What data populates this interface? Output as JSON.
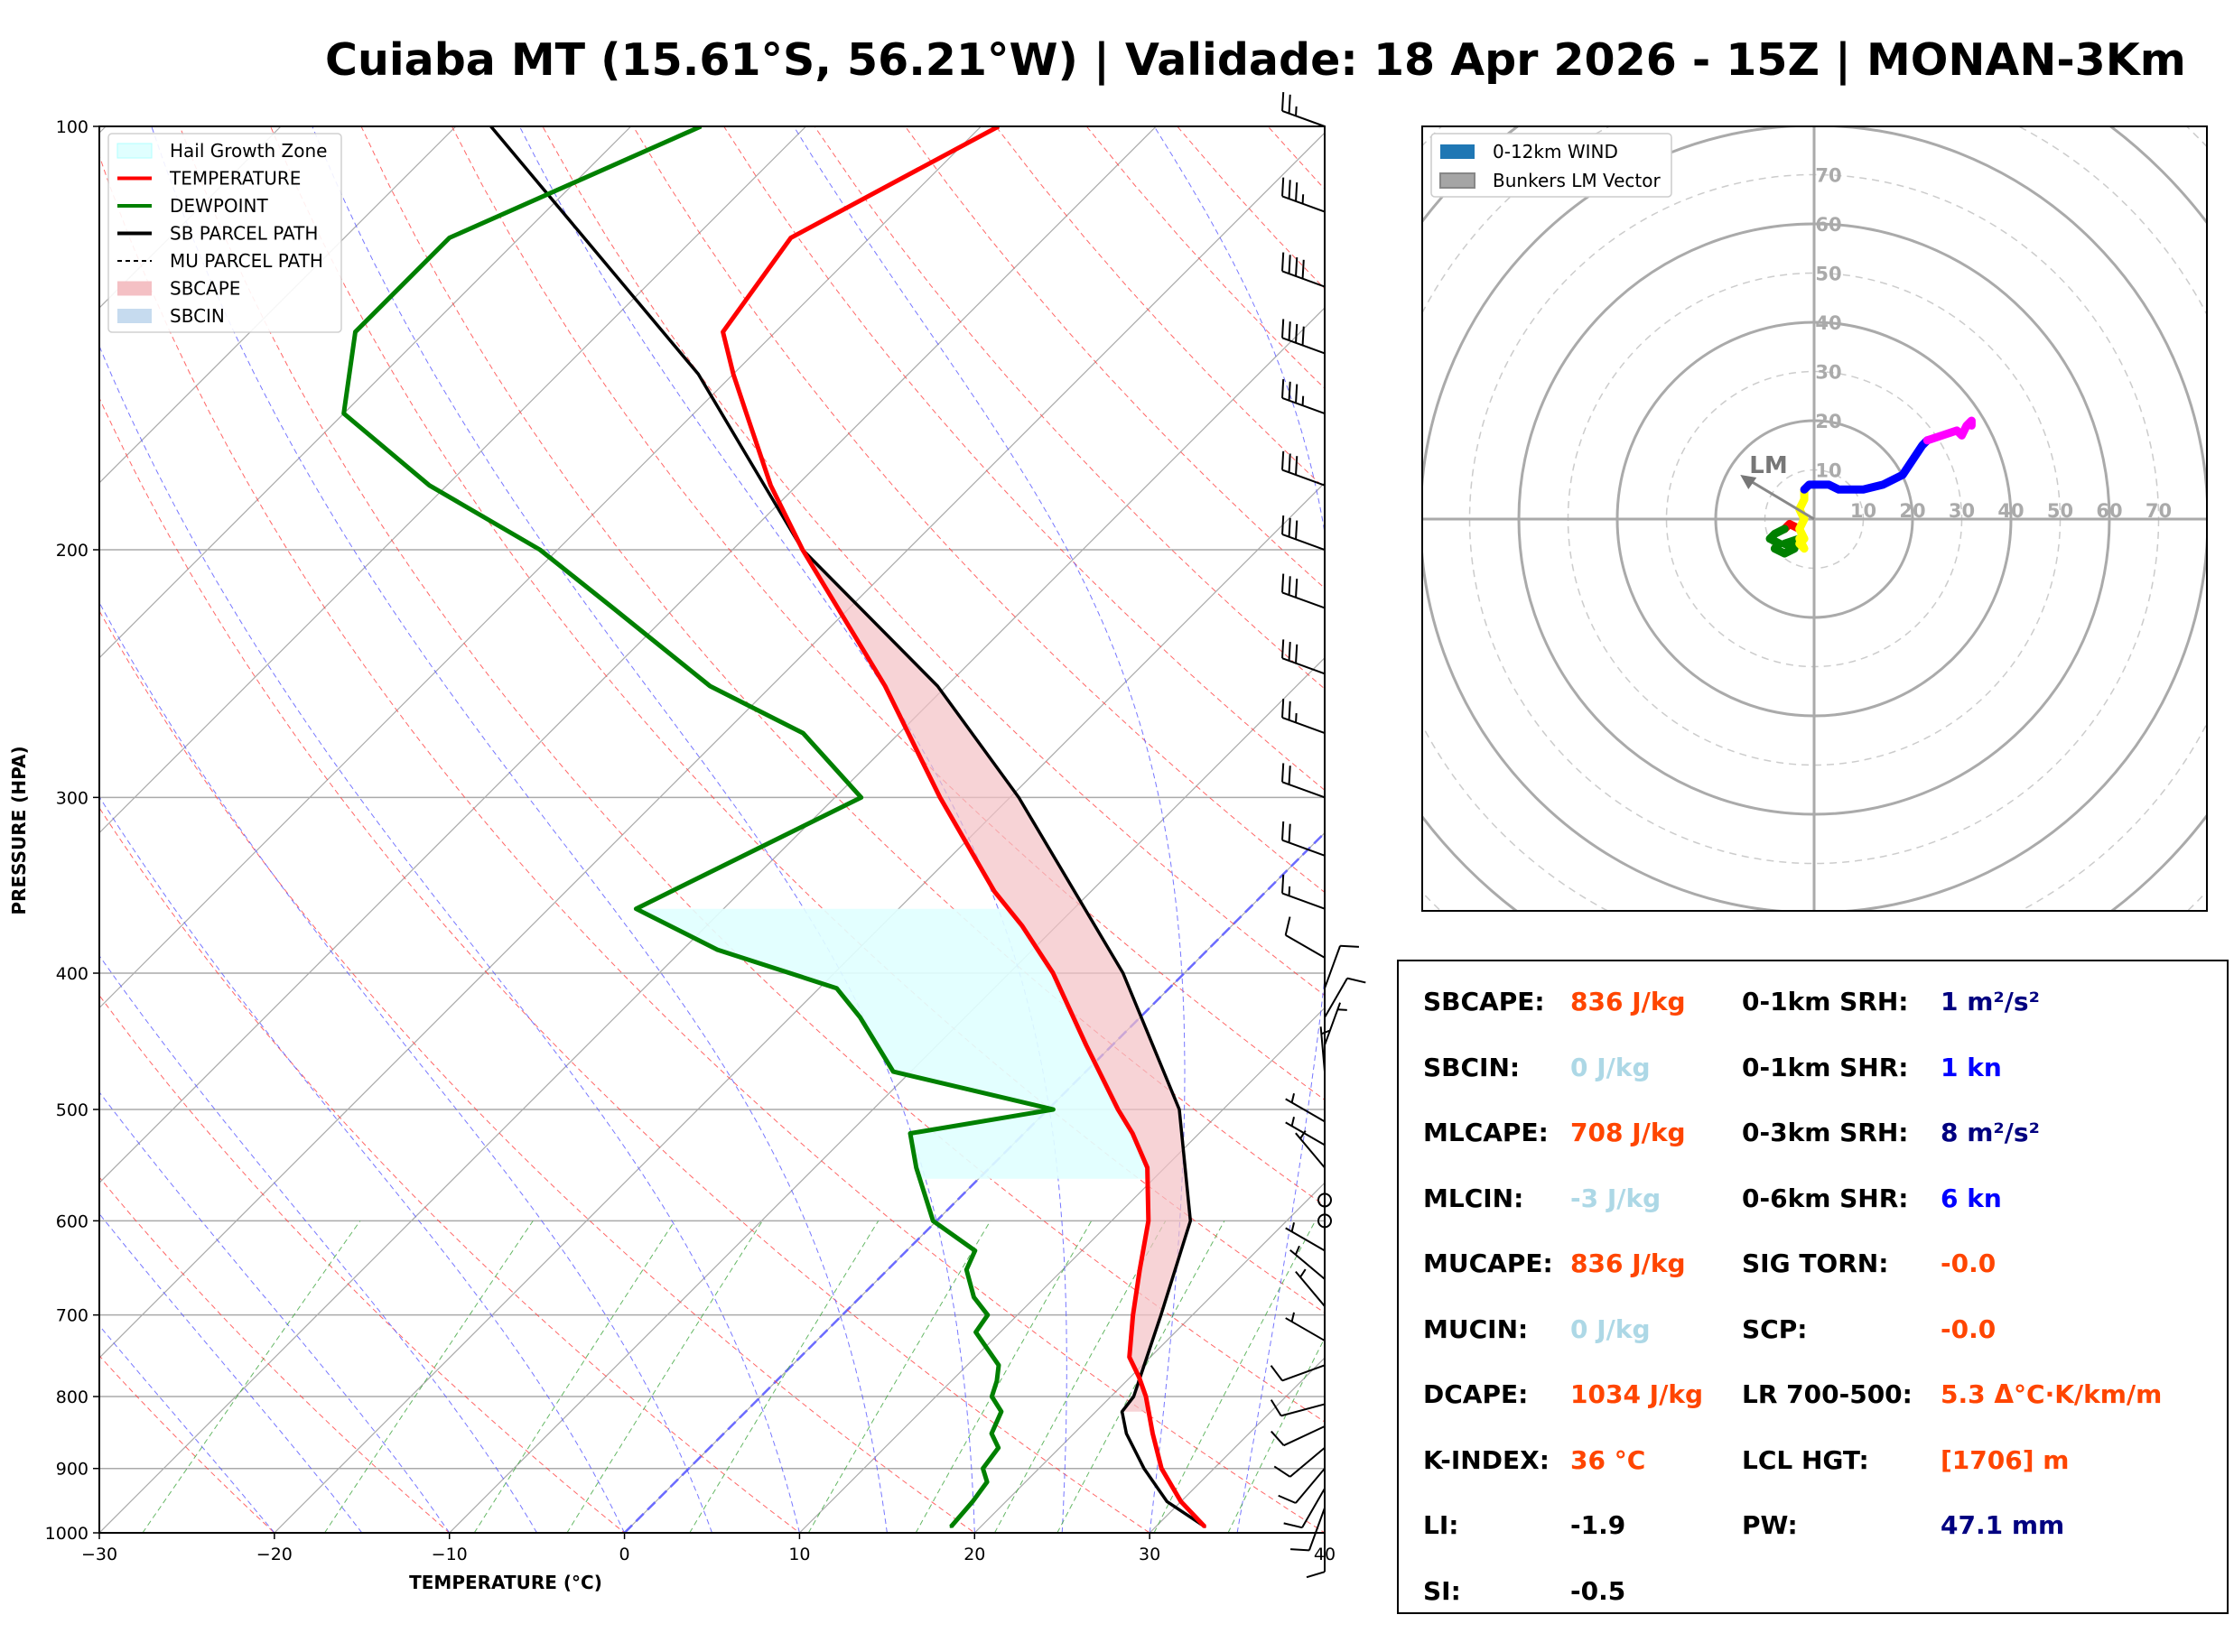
{
  "title": "Cuiaba MT (15.61°S, 56.21°W) | Validade: 18 Apr 2026 - 15Z | MONAN-3Km",
  "chart_data": [
    {
      "type": "line",
      "title": "Skew-T log-P diagram",
      "xlabel": "TEMPERATURE (°C)",
      "ylabel": "PRESSURE (HPA)",
      "xlim": [
        -30,
        40
      ],
      "ylim": [
        1000,
        100
      ],
      "x_ticks": [
        "−30",
        "−20",
        "−10",
        "0",
        "10",
        "20",
        "30",
        "40"
      ],
      "y_ticks": [
        "1000",
        "900",
        "800",
        "700",
        "600",
        "500",
        "400",
        "300",
        "200",
        "100"
      ],
      "legend": {
        "placement": "top-left",
        "entries": [
          {
            "label": "Hail Growth Zone",
            "color": "#e0ffff"
          },
          {
            "label": "TEMPERATURE",
            "color": "#ff0000"
          },
          {
            "label": "DEWPOINT",
            "color": "#008000"
          },
          {
            "label": "SB PARCEL PATH",
            "color": "#000000"
          },
          {
            "label": "MU PARCEL PATH",
            "color": "#000000"
          },
          {
            "label": "SBCAPE",
            "color": "#f4c0c4"
          },
          {
            "label": "SBCIN",
            "color": "#c6dbef"
          }
        ]
      },
      "series": [
        {
          "name": "TEMPERATURE",
          "color": "#ff0000",
          "points": [
            [
              990,
              32.8
            ],
            [
              950,
              30
            ],
            [
              900,
              27
            ],
            [
              850,
              24.5
            ],
            [
              800,
              22
            ],
            [
              775,
              20.5
            ],
            [
              750,
              18.8
            ],
            [
              700,
              16.6
            ],
            [
              650,
              14.4
            ],
            [
              600,
              12.1
            ],
            [
              550,
              9.0
            ],
            [
              520,
              6.2
            ],
            [
              500,
              4.0
            ],
            [
              450,
              -1.5
            ],
            [
              400,
              -7.5
            ],
            [
              370,
              -12
            ],
            [
              350,
              -15.5
            ],
            [
              300,
              -24
            ],
            [
              250,
              -33.5
            ],
            [
              200,
              -46
            ],
            [
              180,
              -51.5
            ],
            [
              160,
              -57
            ],
            [
              150,
              -60
            ],
            [
              140,
              -63
            ],
            [
              120,
              -64.5
            ],
            [
              100,
              -59
            ]
          ]
        },
        {
          "name": "DEWPOINT",
          "color": "#008000",
          "points": [
            [
              990,
              18.3
            ],
            [
              950,
              18.1
            ],
            [
              920,
              17.8
            ],
            [
              900,
              16.8
            ],
            [
              870,
              16.5
            ],
            [
              850,
              15.3
            ],
            [
              820,
              14.6
            ],
            [
              800,
              13.2
            ],
            [
              780,
              12.6
            ],
            [
              760,
              11.8
            ],
            [
              720,
              8.6
            ],
            [
              700,
              8.3
            ],
            [
              680,
              6.5
            ],
            [
              650,
              4.5
            ],
            [
              630,
              3.9
            ],
            [
              600,
              -0.2
            ],
            [
              550,
              -4.2
            ],
            [
              520,
              -6.5
            ],
            [
              500,
              0.3
            ],
            [
              470,
              -11
            ],
            [
              430,
              -16
            ],
            [
              410,
              -19
            ],
            [
              385,
              -28
            ],
            [
              360,
              -35
            ],
            [
              300,
              -28.5
            ],
            [
              270,
              -35.5
            ],
            [
              250,
              -43.5
            ],
            [
              220,
              -53.5
            ],
            [
              200,
              -61
            ],
            [
              180,
              -71
            ],
            [
              160,
              -80
            ],
            [
              140,
              -84
            ],
            [
              120,
              -84
            ],
            [
              100,
              -76
            ]
          ]
        },
        {
          "name": "SB PARCEL PATH",
          "color": "#000000",
          "points": [
            [
              990,
              32.8
            ],
            [
              950,
              29.2
            ],
            [
              900,
              26.0
            ],
            [
              850,
              23.0
            ],
            [
              820,
              21.5
            ],
            [
              800,
              21.3
            ],
            [
              700,
              18.2
            ],
            [
              600,
              14.5
            ],
            [
              500,
              7.5
            ],
            [
              400,
              -3.5
            ],
            [
              300,
              -19.5
            ],
            [
              250,
              -30.5
            ],
            [
              200,
              -46
            ],
            [
              150,
              -62
            ],
            [
              100,
              -88
            ]
          ]
        }
      ],
      "areas": [
        {
          "name": "SBCAPE",
          "color": "#f4c0c4",
          "between": [
            "TEMPERATURE",
            "SB PARCEL PATH"
          ],
          "p_range": [
            820,
            200
          ]
        },
        {
          "name": "Hail Growth Zone",
          "color": "#e0ffff",
          "p_range": [
            560,
            360
          ],
          "t_range": [
            -30,
            -10
          ]
        }
      ],
      "wind_barbs_kn": [
        {
          "p": 990,
          "dir": 180,
          "spd": 10
        },
        {
          "p": 960,
          "dir": 200,
          "spd": 10
        },
        {
          "p": 930,
          "dir": 210,
          "spd": 10
        },
        {
          "p": 900,
          "dir": 220,
          "spd": 10
        },
        {
          "p": 870,
          "dir": 230,
          "spd": 10
        },
        {
          "p": 840,
          "dir": 245,
          "spd": 10
        },
        {
          "p": 810,
          "dir": 255,
          "spd": 10
        },
        {
          "p": 760,
          "dir": 250,
          "spd": 10
        },
        {
          "p": 730,
          "dir": 300,
          "spd": 5
        },
        {
          "p": 690,
          "dir": 320,
          "spd": 5
        },
        {
          "p": 660,
          "dir": 310,
          "spd": 5
        },
        {
          "p": 630,
          "dir": 300,
          "spd": 5
        },
        {
          "p": 600,
          "dir": 0,
          "spd": 0
        },
        {
          "p": 580,
          "dir": 0,
          "spd": 0
        },
        {
          "p": 550,
          "dir": 320,
          "spd": 5
        },
        {
          "p": 530,
          "dir": 300,
          "spd": 5
        },
        {
          "p": 510,
          "dir": 300,
          "spd": 5
        },
        {
          "p": 470,
          "dir": 355,
          "spd": 5
        },
        {
          "p": 450,
          "dir": 20,
          "spd": 5
        },
        {
          "p": 430,
          "dir": 30,
          "spd": 10
        },
        {
          "p": 410,
          "dir": 20,
          "spd": 10
        },
        {
          "p": 390,
          "dir": 300,
          "spd": 10
        },
        {
          "p": 360,
          "dir": 290,
          "spd": 15
        },
        {
          "p": 330,
          "dir": 290,
          "spd": 20
        },
        {
          "p": 300,
          "dir": 290,
          "spd": 20
        },
        {
          "p": 270,
          "dir": 290,
          "spd": 25
        },
        {
          "p": 245,
          "dir": 290,
          "spd": 30
        },
        {
          "p": 220,
          "dir": 290,
          "spd": 30
        },
        {
          "p": 200,
          "dir": 290,
          "spd": 30
        },
        {
          "p": 180,
          "dir": 290,
          "spd": 30
        },
        {
          "p": 160,
          "dir": 290,
          "spd": 35
        },
        {
          "p": 145,
          "dir": 290,
          "spd": 40
        },
        {
          "p": 130,
          "dir": 290,
          "spd": 40
        },
        {
          "p": 115,
          "dir": 290,
          "spd": 35
        },
        {
          "p": 100,
          "dir": 290,
          "spd": 25
        }
      ]
    },
    {
      "type": "line",
      "title": "Hodograph",
      "legend": {
        "placement": "top-left",
        "entries": [
          {
            "label": "0-12km WIND",
            "color": "#1f77b4"
          },
          {
            "label": "Bunkers LM Vector",
            "color": "#808080"
          }
        ]
      },
      "ring_labels": [
        "10",
        "20",
        "30",
        "40",
        "50",
        "60",
        "70"
      ],
      "lm_label": "LM",
      "lm_vector": [
        -15,
        9
      ],
      "series": [
        {
          "name": "0-1km",
          "color": "#ff0000",
          "points": [
            [
              -3,
              -2
            ],
            [
              -5,
              -1
            ],
            [
              -6,
              -2
            ]
          ]
        },
        {
          "name": "1-3km",
          "color": "#008000",
          "points": [
            [
              -6,
              -2
            ],
            [
              -8,
              -3
            ],
            [
              -9,
              -4
            ],
            [
              -7,
              -5
            ],
            [
              -8,
              -6
            ],
            [
              -6,
              -7
            ],
            [
              -4,
              -6
            ],
            [
              -6,
              -5
            ],
            [
              -3,
              -4
            ]
          ]
        },
        {
          "name": "3-6km",
          "color": "#ffff00",
          "points": [
            [
              -3,
              -4
            ],
            [
              -2,
              -6
            ],
            [
              -3,
              -5
            ],
            [
              -2,
              -4
            ],
            [
              -3,
              -2
            ],
            [
              -2,
              0
            ],
            [
              -3,
              2
            ],
            [
              -2,
              4
            ],
            [
              -2,
              6
            ]
          ]
        },
        {
          "name": "6-9km",
          "color": "#0000ff",
          "points": [
            [
              -2,
              6
            ],
            [
              -1,
              7
            ],
            [
              3,
              7
            ],
            [
              5,
              6
            ],
            [
              10,
              6
            ],
            [
              14,
              7
            ],
            [
              18,
              9
            ],
            [
              20,
              12
            ],
            [
              22,
              15
            ],
            [
              23,
              16
            ]
          ]
        },
        {
          "name": "9-12km",
          "color": "#ff00ff",
          "points": [
            [
              23,
              16
            ],
            [
              26,
              17
            ],
            [
              29,
              18
            ],
            [
              30,
              17
            ],
            [
              31,
              19
            ],
            [
              32,
              20
            ],
            [
              32,
              19
            ]
          ]
        }
      ]
    }
  ],
  "params": {
    "left": [
      {
        "label": "SBCAPE:",
        "value": "836 J/kg",
        "color": "#ff4500"
      },
      {
        "label": "SBCIN:",
        "value": "0 J/kg",
        "color": "#add8e6"
      },
      {
        "label": "MLCAPE:",
        "value": "708 J/kg",
        "color": "#ff4500"
      },
      {
        "label": "MLCIN:",
        "value": "-3 J/kg",
        "color": "#add8e6"
      },
      {
        "label": "MUCAPE:",
        "value": "836 J/kg",
        "color": "#ff4500"
      },
      {
        "label": "MUCIN:",
        "value": "0 J/kg",
        "color": "#add8e6"
      },
      {
        "label": "DCAPE:",
        "value": "1034 J/kg",
        "color": "#ff4500"
      },
      {
        "label": "K-INDEX:",
        "value": "36 °C",
        "color": "#ff4500"
      },
      {
        "label": "LI:",
        "value": "-1.9",
        "color": "#000000"
      },
      {
        "label": "SI:",
        "value": "-0.5",
        "color": "#000000"
      }
    ],
    "right": [
      {
        "label": "0-1km SRH:",
        "value": "1 m²/s²",
        "color": "#000080"
      },
      {
        "label": "0-1km SHR:",
        "value": "1 kn",
        "color": "#0000ff"
      },
      {
        "label": "0-3km SRH:",
        "value": "8 m²/s²",
        "color": "#000080"
      },
      {
        "label": "0-6km SHR:",
        "value": "6 kn",
        "color": "#0000ff"
      },
      {
        "label": "SIG TORN:",
        "value": "-0.0",
        "color": "#ff4500"
      },
      {
        "label": "SCP:",
        "value": "-0.0",
        "color": "#ff4500"
      },
      {
        "label": "LR 700-500:",
        "value": "5.3 Δ°C·K/km/m",
        "color": "#ff4500"
      },
      {
        "label": "LCL HGT:",
        "value": "[1706] m",
        "color": "#ff4500"
      },
      {
        "label": "PW:",
        "value": "47.1 mm",
        "color": "#000080"
      }
    ]
  }
}
